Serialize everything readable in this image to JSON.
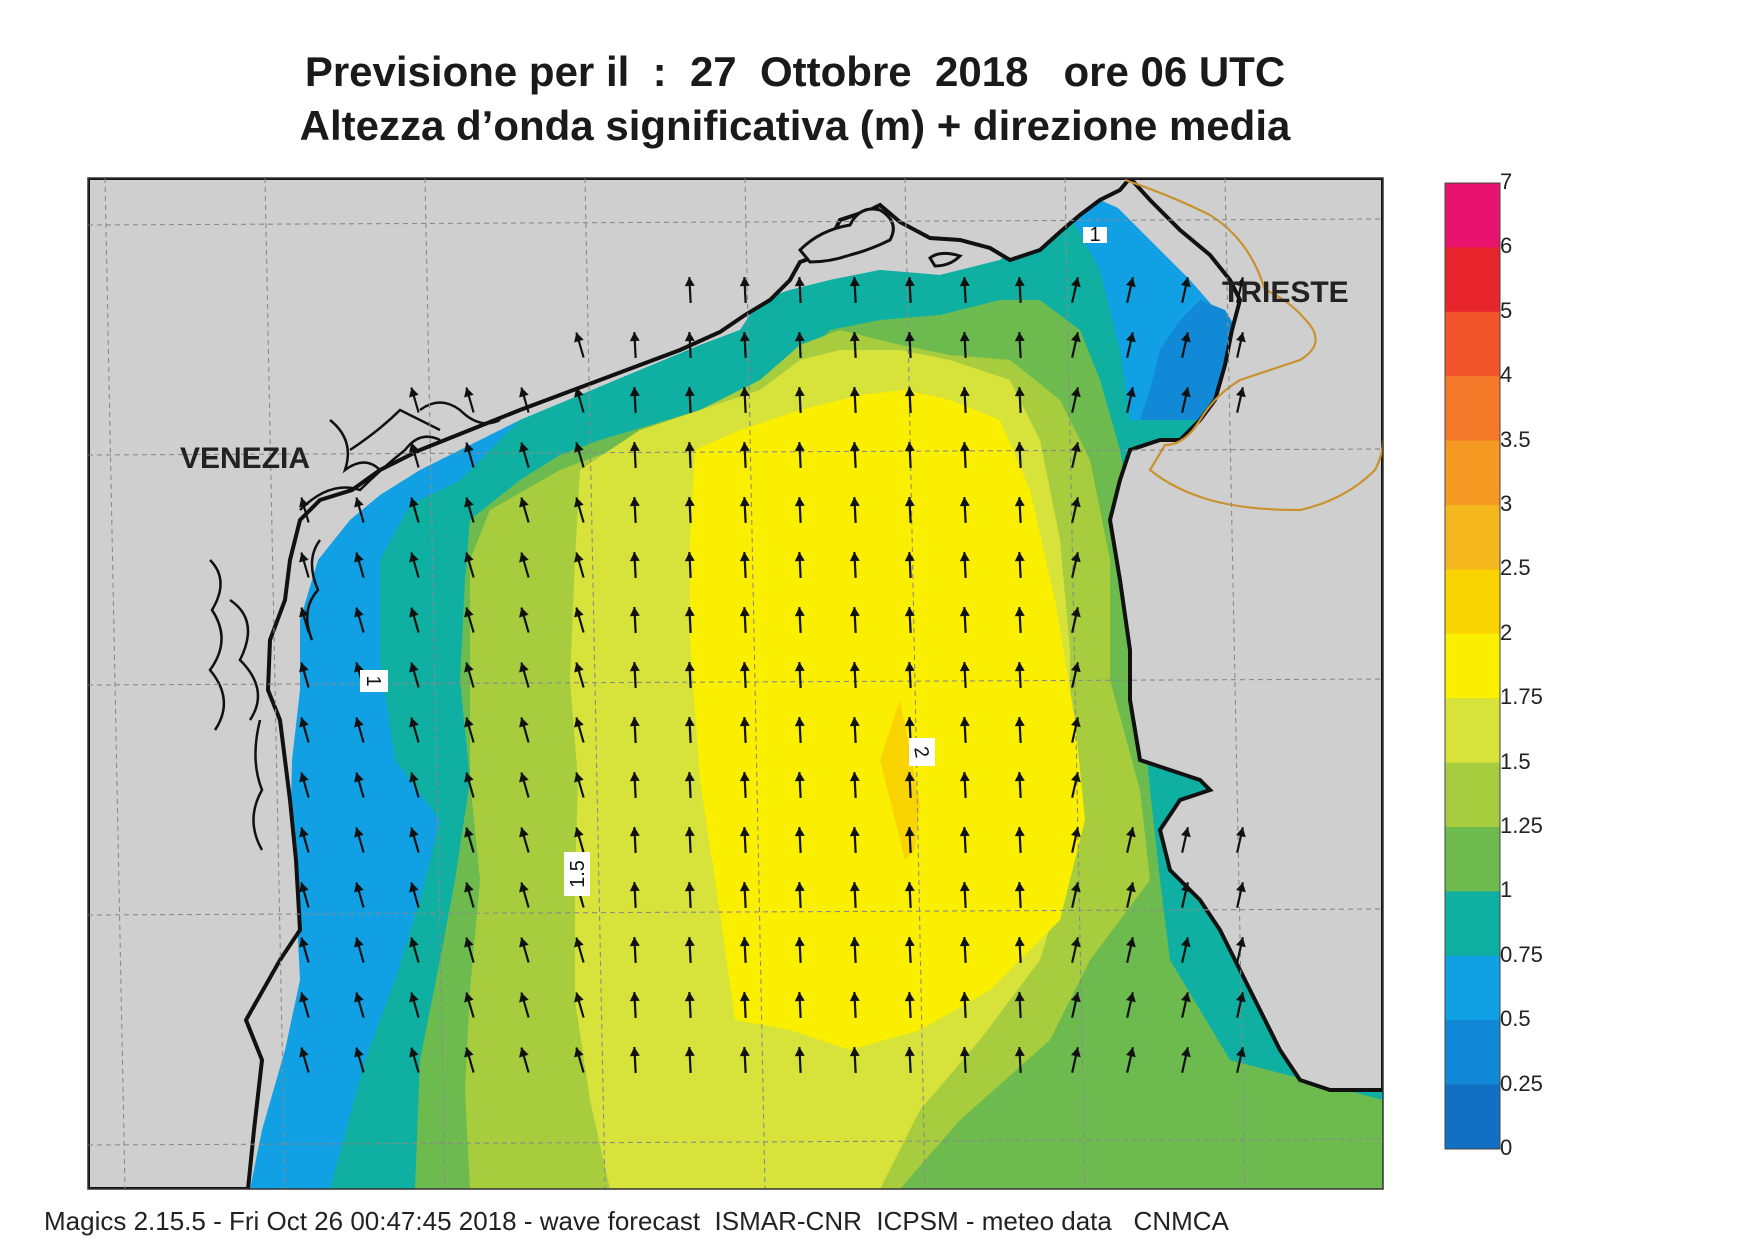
{
  "title_line1": "Previsione per il  :  27  Ottobre  2018   ore 06 UTC",
  "title_line2": "Altezza d’onda significativa (m) + direzione media",
  "map": {
    "labels": [
      {
        "name": "venezia-label",
        "text": "VENEZIA"
      },
      {
        "name": "trieste-label",
        "text": "TRIESTE"
      }
    ],
    "contour_labels": [
      "1",
      "1.5",
      "2",
      "1"
    ],
    "colors": {
      "land": "#cfcfcf",
      "coast": "#111111",
      "border": "#c8922e",
      "grid": "#8a8a8a",
      "arrow": "#111111"
    },
    "wave_direction": "north-northwest"
  },
  "legend": {
    "ticks": [
      "7",
      "6",
      "5",
      "4",
      "3.5",
      "3",
      "2.5",
      "2",
      "1.75",
      "1.5",
      "1.25",
      "1",
      "0.75",
      "0.5",
      "0.25",
      "0"
    ],
    "colors": [
      "#e8136d",
      "#e8252a",
      "#f2542c",
      "#f47a2a",
      "#f59a22",
      "#f5b71e",
      "#fad400",
      "#fbef00",
      "#d7e23a",
      "#a7cd3f",
      "#6dbb4f",
      "#0fb0a1",
      "#11a0e3",
      "#1289d6",
      "#1170c4",
      "#1060b7"
    ]
  },
  "footer": "Magics 2.15.5 - Fri Oct 26 00:47:45 2018 - wave forecast  ISMAR-CNR  ICPSM - meteo data   CNMCA"
}
